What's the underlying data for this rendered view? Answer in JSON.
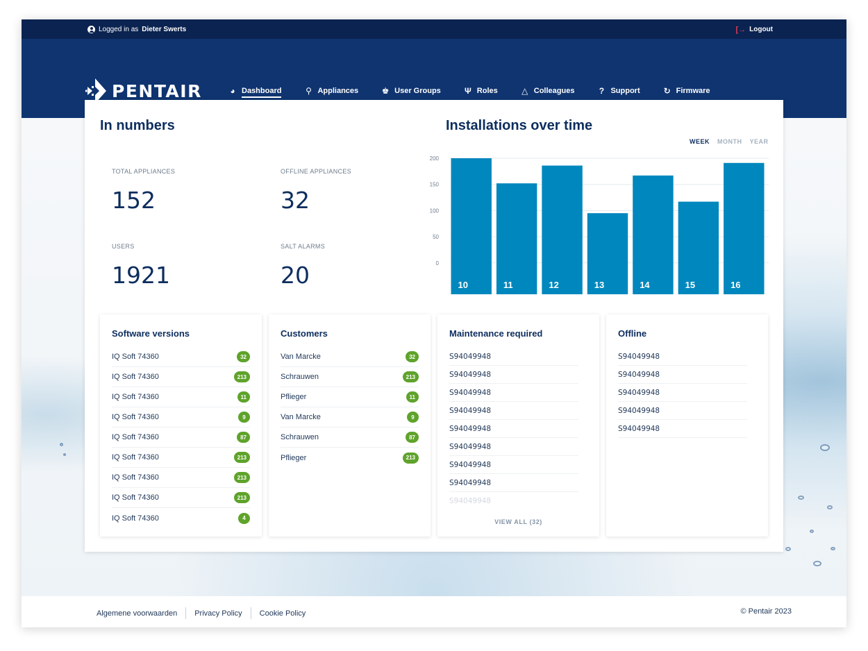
{
  "topbar": {
    "logged_in_prefix": "Logged in as",
    "user_name": "Dieter Swerts",
    "logout_label": "Logout"
  },
  "brand": {
    "name": "PENTAIR"
  },
  "nav": {
    "items": [
      {
        "label": "Dashboard",
        "icon": "gauge-icon",
        "active": true
      },
      {
        "label": "Appliances",
        "icon": "faucet-icon"
      },
      {
        "label": "User Groups",
        "icon": "user-group-icon"
      },
      {
        "label": "Roles",
        "icon": "roles-icon"
      },
      {
        "label": "Colleagues",
        "icon": "colleagues-icon"
      },
      {
        "label": "Support",
        "icon": "help-icon"
      },
      {
        "label": "Firmware",
        "icon": "refresh-icon"
      }
    ]
  },
  "numbers": {
    "title": "In numbers",
    "stats": [
      {
        "label": "TOTAL APPLIANCES",
        "value": "152"
      },
      {
        "label": "OFFLINE APPLIANCES",
        "value": "32"
      },
      {
        "label": "USERS",
        "value": "1921"
      },
      {
        "label": "SALT ALARMS",
        "value": "20"
      }
    ]
  },
  "installations": {
    "title": "Installations over time",
    "periods": [
      "WEEK",
      "MONTH",
      "YEAR"
    ],
    "active_period": "WEEK"
  },
  "chart_data": {
    "type": "bar",
    "title": "Installations over time",
    "categories": [
      "10",
      "11",
      "12",
      "13",
      "14",
      "15",
      "16"
    ],
    "values": [
      200,
      152,
      186,
      95,
      167,
      117,
      191
    ],
    "yticks": [
      0,
      50,
      100,
      150,
      200
    ],
    "ylim": [
      -60,
      200
    ],
    "bar_color": "#0087bd",
    "grid": true,
    "legend": "none"
  },
  "software_versions": {
    "title": "Software versions",
    "rows": [
      {
        "name": "IQ Soft 74360",
        "count": "32"
      },
      {
        "name": "IQ Soft 74360",
        "count": "213"
      },
      {
        "name": "IQ Soft 74360",
        "count": "11"
      },
      {
        "name": "IQ Soft 74360",
        "count": "9"
      },
      {
        "name": "IQ Soft 74360",
        "count": "87"
      },
      {
        "name": "IQ Soft 74360",
        "count": "213"
      },
      {
        "name": "IQ Soft 74360",
        "count": "213"
      },
      {
        "name": "IQ Soft 74360",
        "count": "213"
      },
      {
        "name": "IQ Soft 74360",
        "count": "4"
      }
    ]
  },
  "customers": {
    "title": "Customers",
    "rows": [
      {
        "name": "Van Marcke",
        "count": "32"
      },
      {
        "name": "Schrauwen",
        "count": "213"
      },
      {
        "name": "Pflieger",
        "count": "11"
      },
      {
        "name": "Van Marcke",
        "count": "9"
      },
      {
        "name": "Schrauwen",
        "count": "87"
      },
      {
        "name": "Pflieger",
        "count": "213"
      }
    ]
  },
  "maintenance": {
    "title": "Maintenance required",
    "serials": [
      "S94049948",
      "S94049948",
      "S94049948",
      "S94049948",
      "S94049948",
      "S94049948",
      "S94049948",
      "S94049948",
      "S94049948"
    ],
    "view_all": "VIEW ALL (32)"
  },
  "offline": {
    "title": "Offline",
    "serials": [
      "S94049948",
      "S94049948",
      "S94049948",
      "S94049948",
      "S94049948"
    ]
  },
  "footer": {
    "links": [
      "Algemene voorwaarden",
      "Privacy Policy",
      "Cookie Policy"
    ],
    "copyright": "© Pentair 2023"
  },
  "colors": {
    "navy": "#0f3470",
    "topbar": "#0b2350",
    "accent_blue": "#0087bd",
    "badge_green": "#5fa32b",
    "logout_red": "#e43b5a"
  }
}
